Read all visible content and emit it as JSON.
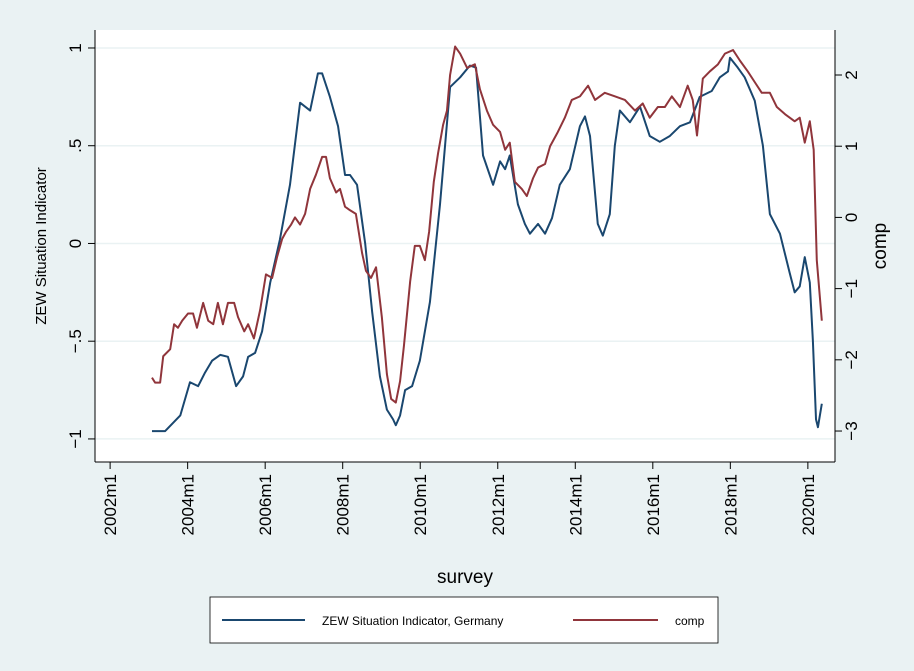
{
  "chart_data": {
    "type": "line",
    "y_label": "ZEW Situation Indicator",
    "y2_label": "comp",
    "x_label": "survey",
    "xlim": [
      2001.61,
      2020.7
    ],
    "xticks": [
      {
        "value": 2002,
        "label": "2002m1"
      },
      {
        "value": 2004,
        "label": "2004m1"
      },
      {
        "value": 2006,
        "label": "2006m1"
      },
      {
        "value": 2008,
        "label": "2008m1"
      },
      {
        "value": 2010,
        "label": "2010m1"
      },
      {
        "value": 2012,
        "label": "2012m1"
      },
      {
        "value": 2014,
        "label": "2014m1"
      },
      {
        "value": 2016,
        "label": "2016m1"
      },
      {
        "value": 2018,
        "label": "2018m1"
      },
      {
        "value": 2020,
        "label": "2020m1"
      }
    ],
    "ylim": [
      -1.118,
      1.092
    ],
    "yticks": [
      {
        "value": -1,
        "label": "−1"
      },
      {
        "value": -0.5,
        "label": "−.5"
      },
      0,
      {
        "value": 0.5,
        "label": ".5"
      },
      1
    ],
    "y2lim": [
      -3.435,
      2.632
    ],
    "y2ticks": [
      {
        "value": -3,
        "label": "−3"
      },
      {
        "value": -2,
        "label": "−2"
      },
      {
        "value": -1,
        "label": "−1"
      },
      0,
      1,
      2
    ],
    "grid": true,
    "legend_position": "bottom",
    "series": [
      {
        "name": "ZEW Situation Indicator, Germany",
        "color": "#1a476f",
        "x": [
          2003.08,
          2003.42,
          2003.81,
          2004.06,
          2004.27,
          2004.45,
          2004.63,
          2004.84,
          2005.04,
          2005.25,
          2005.43,
          2005.56,
          2005.74,
          2005.92,
          2006.13,
          2006.38,
          2006.64,
          2006.9,
          2007.16,
          2007.36,
          2007.47,
          2007.67,
          2007.88,
          2008.06,
          2008.19,
          2008.37,
          2008.58,
          2008.76,
          2008.96,
          2009.14,
          2009.3,
          2009.37,
          2009.48,
          2009.61,
          2009.79,
          2009.99,
          2010.25,
          2010.51,
          2010.77,
          2011.03,
          2011.28,
          2011.44,
          2011.62,
          2011.88,
          2012.06,
          2012.19,
          2012.31,
          2012.52,
          2012.7,
          2012.83,
          2013.04,
          2013.22,
          2013.4,
          2013.6,
          2013.86,
          2014.12,
          2014.25,
          2014.38,
          2014.58,
          2014.71,
          2014.89,
          2015.02,
          2015.15,
          2015.41,
          2015.67,
          2015.92,
          2016.18,
          2016.44,
          2016.7,
          2016.96,
          2017.21,
          2017.52,
          2017.73,
          2017.94,
          2017.99,
          2018.19,
          2018.37,
          2018.63,
          2018.84,
          2019.02,
          2019.28,
          2019.53,
          2019.66,
          2019.79,
          2019.92,
          2020.05,
          2020.13,
          2020.21,
          2020.26,
          2020.36
        ],
        "values": [
          -0.96,
          -0.96,
          -0.88,
          -0.71,
          -0.73,
          -0.66,
          -0.6,
          -0.57,
          -0.58,
          -0.73,
          -0.68,
          -0.58,
          -0.56,
          -0.45,
          -0.2,
          0.02,
          0.3,
          0.72,
          0.68,
          0.87,
          0.87,
          0.75,
          0.6,
          0.35,
          0.35,
          0.3,
          0.0,
          -0.35,
          -0.68,
          -0.85,
          -0.9,
          -0.93,
          -0.88,
          -0.75,
          -0.73,
          -0.6,
          -0.3,
          0.2,
          0.8,
          0.85,
          0.91,
          0.9,
          0.45,
          0.3,
          0.42,
          0.38,
          0.45,
          0.2,
          0.1,
          0.05,
          0.1,
          0.05,
          0.13,
          0.3,
          0.38,
          0.6,
          0.65,
          0.55,
          0.1,
          0.04,
          0.15,
          0.5,
          0.68,
          0.62,
          0.7,
          0.55,
          0.52,
          0.55,
          0.6,
          0.62,
          0.75,
          0.78,
          0.85,
          0.88,
          0.95,
          0.9,
          0.85,
          0.73,
          0.5,
          0.15,
          0.05,
          -0.15,
          -0.25,
          -0.22,
          -0.07,
          -0.2,
          -0.5,
          -0.9,
          -0.94,
          -0.82
        ]
      },
      {
        "name": "comp",
        "color": "#90353b",
        "axis": "y2",
        "x": [
          2003.08,
          2003.16,
          2003.29,
          2003.37,
          2003.55,
          2003.65,
          2003.75,
          2003.86,
          2004.01,
          2004.14,
          2004.24,
          2004.4,
          2004.53,
          2004.66,
          2004.78,
          2004.91,
          2005.04,
          2005.2,
          2005.3,
          2005.46,
          2005.56,
          2005.71,
          2005.87,
          2006.02,
          2006.18,
          2006.31,
          2006.44,
          2006.54,
          2006.67,
          2006.77,
          2006.9,
          2007.03,
          2007.16,
          2007.31,
          2007.47,
          2007.57,
          2007.67,
          2007.83,
          2007.93,
          2008.06,
          2008.19,
          2008.34,
          2008.5,
          2008.6,
          2008.73,
          2008.86,
          2009.01,
          2009.14,
          2009.25,
          2009.37,
          2009.48,
          2009.58,
          2009.74,
          2009.86,
          2009.99,
          2010.12,
          2010.23,
          2010.35,
          2010.46,
          2010.59,
          2010.69,
          2010.77,
          2010.9,
          2011.03,
          2011.21,
          2011.41,
          2011.54,
          2011.72,
          2011.88,
          2012.06,
          2012.19,
          2012.31,
          2012.44,
          2012.62,
          2012.75,
          2012.91,
          2013.04,
          2013.22,
          2013.35,
          2013.55,
          2013.73,
          2013.91,
          2014.12,
          2014.33,
          2014.51,
          2014.76,
          2015.02,
          2015.28,
          2015.54,
          2015.74,
          2015.92,
          2016.13,
          2016.31,
          2016.49,
          2016.7,
          2016.9,
          2017.03,
          2017.14,
          2017.29,
          2017.47,
          2017.68,
          2017.86,
          2018.07,
          2018.25,
          2018.45,
          2018.63,
          2018.81,
          2019.02,
          2019.2,
          2019.41,
          2019.66,
          2019.79,
          2019.92,
          2020.05,
          2020.15,
          2020.23,
          2020.36
        ],
        "values": [
          -2.25,
          -2.32,
          -2.32,
          -1.95,
          -1.85,
          -1.5,
          -1.55,
          -1.45,
          -1.35,
          -1.35,
          -1.55,
          -1.2,
          -1.45,
          -1.5,
          -1.2,
          -1.5,
          -1.2,
          -1.2,
          -1.4,
          -1.6,
          -1.5,
          -1.7,
          -1.3,
          -0.8,
          -0.85,
          -0.55,
          -0.3,
          -0.2,
          -0.1,
          0.0,
          -0.1,
          0.05,
          0.4,
          0.6,
          0.85,
          0.85,
          0.55,
          0.35,
          0.4,
          0.15,
          0.1,
          0.05,
          -0.5,
          -0.75,
          -0.85,
          -0.7,
          -1.4,
          -2.2,
          -2.55,
          -2.6,
          -2.3,
          -1.8,
          -0.9,
          -0.4,
          -0.4,
          -0.6,
          -0.2,
          0.5,
          0.9,
          1.3,
          1.5,
          2.0,
          2.4,
          2.3,
          2.1,
          2.15,
          1.8,
          1.5,
          1.3,
          1.2,
          0.95,
          1.05,
          0.5,
          0.4,
          0.3,
          0.55,
          0.7,
          0.75,
          1.0,
          1.2,
          1.4,
          1.65,
          1.7,
          1.85,
          1.65,
          1.75,
          1.7,
          1.65,
          1.5,
          1.6,
          1.4,
          1.55,
          1.55,
          1.7,
          1.55,
          1.85,
          1.65,
          1.15,
          1.95,
          2.05,
          2.15,
          2.3,
          2.35,
          2.2,
          2.05,
          1.9,
          1.75,
          1.75,
          1.55,
          1.45,
          1.35,
          1.4,
          1.05,
          1.35,
          0.95,
          -0.6,
          -1.45
        ]
      }
    ]
  }
}
